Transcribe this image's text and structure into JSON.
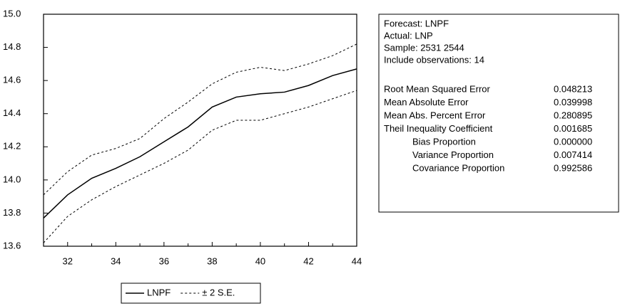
{
  "chart_data": {
    "type": "line",
    "x": [
      31,
      32,
      33,
      34,
      35,
      36,
      37,
      38,
      39,
      40,
      41,
      42,
      43,
      44
    ],
    "xlim": [
      31,
      44
    ],
    "xticks": [
      32,
      34,
      36,
      38,
      40,
      42,
      44
    ],
    "minor_xticks": [
      31,
      33,
      35,
      37,
      39,
      41,
      43
    ],
    "ylim": [
      13.6,
      15.0
    ],
    "yticks": [
      13.6,
      13.8,
      {
        "value": 14.0,
        "label": "14.0"
      },
      14.2,
      14.4,
      14.6,
      14.8,
      {
        "value": 15.0,
        "label": "15.0"
      }
    ],
    "series": [
      {
        "name": "LNPF",
        "color": "#000000",
        "style": "solid",
        "values": [
          13.77,
          13.91,
          14.01,
          14.07,
          14.14,
          14.23,
          14.32,
          14.44,
          14.5,
          14.52,
          14.53,
          14.57,
          14.63,
          14.67
        ]
      },
      {
        "name": "± 2 S.E.",
        "color": "#000000",
        "style": "dashed",
        "upper": [
          13.91,
          14.05,
          14.15,
          14.19,
          14.25,
          14.37,
          14.47,
          14.58,
          14.65,
          14.68,
          14.66,
          14.7,
          14.75,
          14.82
        ],
        "lower": [
          13.62,
          13.78,
          13.88,
          13.96,
          14.03,
          14.1,
          14.18,
          14.3,
          14.36,
          14.36,
          14.4,
          14.44,
          14.49,
          14.54
        ]
      }
    ],
    "info": [
      "Forecast: LNPF",
      "Actual: LNP",
      "Sample: 2531 2544",
      "Include observations: 14"
    ],
    "stats": [
      {
        "label": "Root Mean Squared Error",
        "value": "0.048213",
        "indent": false
      },
      {
        "label": "Mean Absolute Error",
        "value": "0.039998",
        "indent": false
      },
      {
        "label": "Mean Abs. Percent Error",
        "value": "0.280895",
        "indent": false
      },
      {
        "label": "Theil Inequality Coefficient",
        "value": "0.001685",
        "indent": false
      },
      {
        "label": "Bias Proportion",
        "value": "0.000000",
        "indent": true
      },
      {
        "label": "Variance Proportion",
        "value": "0.007414",
        "indent": true
      },
      {
        "label": "Covariance Proportion",
        "value": "0.992586",
        "indent": true
      }
    ]
  }
}
